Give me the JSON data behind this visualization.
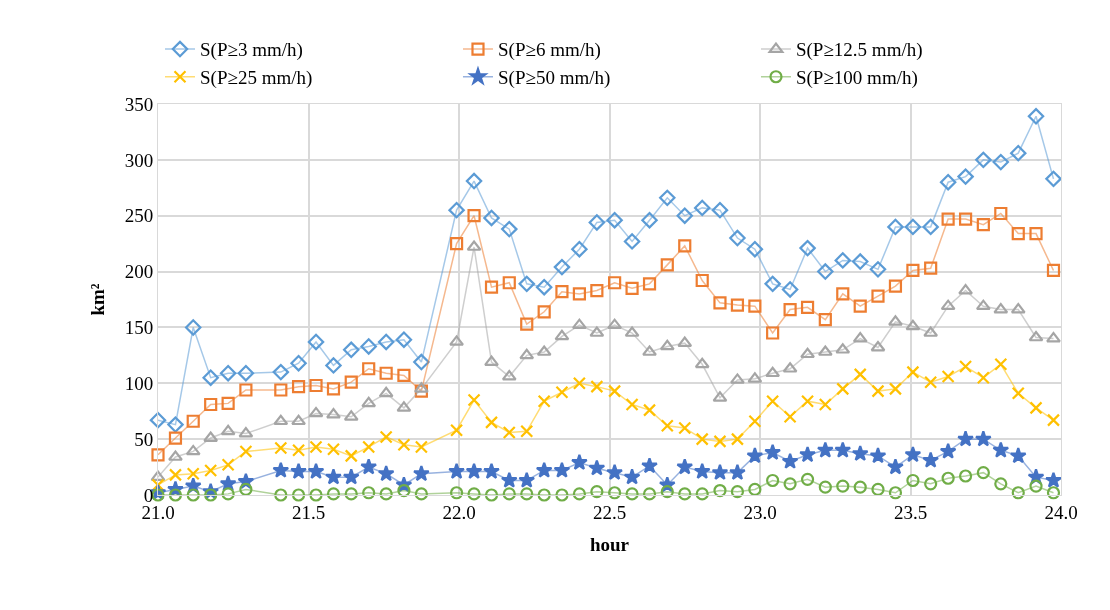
{
  "chart_data": {
    "type": "line",
    "xlabel": "hour",
    "ylabel": "km²",
    "x": [
      21.0,
      21.058,
      21.117,
      21.175,
      21.233,
      21.292,
      21.408,
      21.467,
      21.525,
      21.583,
      21.642,
      21.7,
      21.758,
      21.817,
      21.875,
      21.992,
      22.05,
      22.108,
      22.167,
      22.225,
      22.283,
      22.342,
      22.4,
      22.458,
      22.517,
      22.575,
      22.633,
      22.692,
      22.75,
      22.808,
      22.867,
      22.925,
      22.983,
      23.042,
      23.1,
      23.158,
      23.217,
      23.275,
      23.333,
      23.392,
      23.45,
      23.508,
      23.567,
      23.625,
      23.683,
      23.742,
      23.8,
      23.858,
      23.917,
      23.975
    ],
    "series": [
      {
        "name": "S(P≥3 mm/h)",
        "color": "#5b9bd5",
        "marker": "diamond",
        "values": [
          67,
          63,
          150,
          105,
          109,
          109,
          110,
          118,
          137,
          116,
          130,
          133,
          137,
          139,
          119,
          255,
          281,
          248,
          238,
          189,
          186,
          204,
          220,
          244,
          246,
          227,
          246,
          266,
          250,
          257,
          255,
          230,
          220,
          189,
          184,
          221,
          200,
          210,
          209,
          202,
          240,
          240,
          240,
          280,
          285,
          300,
          298,
          306,
          339,
          283
        ]
      },
      {
        "name": "S(P≥6 mm/h)",
        "color": "#ed7d31",
        "marker": "square",
        "values": [
          36,
          51,
          66,
          81,
          82,
          94,
          94,
          97,
          98,
          95,
          101,
          113,
          109,
          107,
          93,
          225,
          250,
          186,
          190,
          153,
          164,
          182,
          180,
          183,
          190,
          185,
          189,
          206,
          223,
          192,
          172,
          170,
          169,
          145,
          166,
          168,
          157,
          180,
          169,
          178,
          187,
          201,
          203,
          247,
          247,
          242,
          252,
          234,
          234,
          201
        ]
      },
      {
        "name": "S(P≥12.5 mm/h)",
        "color": "#a5a5a5",
        "marker": "triangle",
        "values": [
          16,
          34,
          39,
          51,
          57,
          55,
          66,
          66,
          73,
          72,
          70,
          82,
          91,
          78,
          95,
          137,
          222,
          119,
          106,
          125,
          128,
          142,
          152,
          145,
          152,
          145,
          128,
          133,
          136,
          117,
          87,
          103,
          104,
          109,
          113,
          126,
          128,
          130,
          140,
          132,
          155,
          151,
          145,
          169,
          183,
          169,
          166,
          166,
          141,
          140
        ]
      },
      {
        "name": "S(P≥25 mm/h)",
        "color": "#ffc000",
        "marker": "cross",
        "values": [
          9,
          18,
          19,
          22,
          27,
          39,
          42,
          40,
          43,
          41,
          35,
          43,
          52,
          45,
          43,
          58,
          85,
          65,
          56,
          57,
          84,
          92,
          100,
          97,
          93,
          81,
          76,
          62,
          60,
          50,
          48,
          50,
          66,
          84,
          70,
          84,
          81,
          95,
          108,
          93,
          95,
          110,
          101,
          106,
          115,
          105,
          117,
          91,
          78,
          67
        ]
      },
      {
        "name": "S(P≥50 mm/h)",
        "color": "#4472c4",
        "marker": "star",
        "values": [
          2,
          5,
          8,
          3,
          10,
          12,
          22,
          21,
          21,
          16,
          16,
          25,
          19,
          9,
          19,
          21,
          21,
          21,
          13,
          13,
          22,
          22,
          29,
          24,
          20,
          16,
          26,
          9,
          25,
          21,
          20,
          20,
          35,
          38,
          30,
          36,
          40,
          40,
          37,
          35,
          25,
          36,
          31,
          39,
          50,
          50,
          40,
          35,
          16,
          13
        ]
      },
      {
        "name": "S(P≥100 mm/h)",
        "color": "#70ad47",
        "marker": "circle",
        "values": [
          0,
          0,
          0,
          0,
          1,
          5,
          0,
          0,
          0,
          1,
          1,
          2,
          1,
          4,
          1,
          2,
          1,
          0,
          1,
          1,
          0,
          0,
          1,
          3,
          2,
          1,
          1,
          3,
          1,
          1,
          4,
          3,
          5,
          13,
          10,
          14,
          7,
          8,
          7,
          5,
          2,
          13,
          10,
          15,
          17,
          20,
          10,
          2,
          8,
          2
        ]
      }
    ],
    "xlim": [
      21,
      24
    ],
    "xticks": [
      {
        "value": 21,
        "label": "21.0"
      },
      {
        "value": 21.5,
        "label": "21.5"
      },
      {
        "value": 22,
        "label": "22.0"
      },
      {
        "value": 22.5,
        "label": "22.5"
      },
      {
        "value": 23,
        "label": "23.0"
      },
      {
        "value": 23.5,
        "label": "23.5"
      },
      {
        "value": 24,
        "label": "24.0"
      }
    ],
    "ylim": [
      0,
      350
    ],
    "yticks": [
      0,
      50,
      100,
      150,
      200,
      250,
      300,
      350
    ],
    "grid": true,
    "legend": "top",
    "line_style": "solid"
  }
}
